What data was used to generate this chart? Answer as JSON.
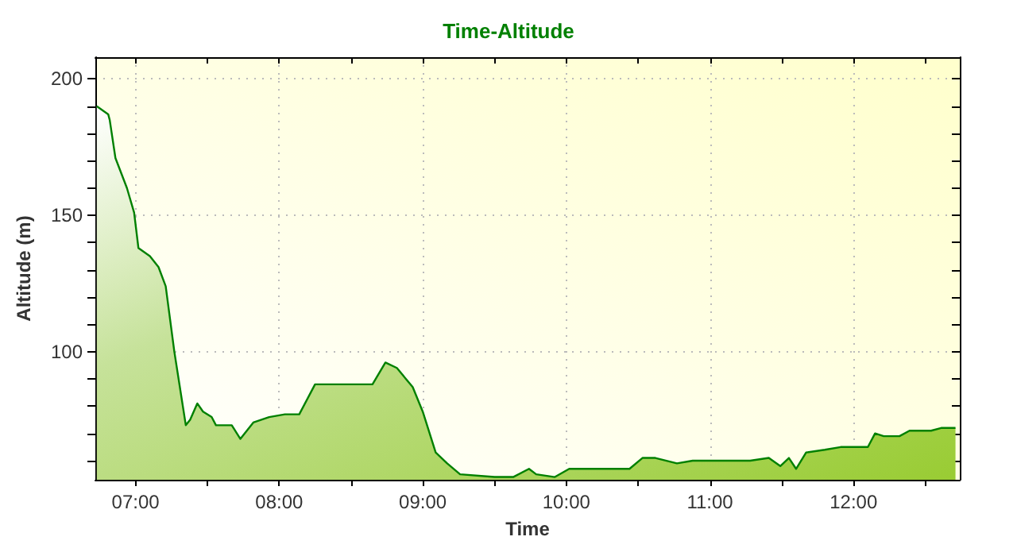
{
  "chart_data": {
    "type": "area",
    "title": "Time-Altitude",
    "xlabel": "Time",
    "ylabel": "Altitude (m)",
    "xlim": [
      6.72,
      12.74
    ],
    "xticks": [
      {
        "value": 7,
        "label": "07:00"
      },
      {
        "value": 7.5,
        "label": null
      },
      {
        "value": 8,
        "label": "08:00"
      },
      {
        "value": 8.5,
        "label": null
      },
      {
        "value": 9,
        "label": "09:00"
      },
      {
        "value": 9.5,
        "label": null
      },
      {
        "value": 10,
        "label": "10:00"
      },
      {
        "value": 10.5,
        "label": null
      },
      {
        "value": 11,
        "label": "11:00"
      },
      {
        "value": 11.5,
        "label": null
      },
      {
        "value": 12,
        "label": "12:00"
      },
      {
        "value": 12.5,
        "label": null
      }
    ],
    "ylim": [
      53,
      208
    ],
    "yticks": [
      {
        "value": 60,
        "label": null
      },
      {
        "value": 70,
        "label": null
      },
      {
        "value": 80,
        "label": null
      },
      {
        "value": 90,
        "label": null
      },
      100,
      {
        "value": 110,
        "label": null
      },
      {
        "value": 120,
        "label": null
      },
      {
        "value": 130,
        "label": null
      },
      {
        "value": 140,
        "label": null
      },
      150,
      {
        "value": 160,
        "label": null
      },
      {
        "value": 170,
        "label": null
      },
      {
        "value": 180,
        "label": null
      },
      {
        "value": 190,
        "label": null
      },
      200
    ],
    "grid": true,
    "line_style": "solid",
    "marker": "none",
    "series": [
      {
        "color": "#008000",
        "x": [
          6.73,
          6.81,
          6.82,
          6.86,
          6.94,
          6.99,
          7.02,
          7.1,
          7.16,
          7.21,
          7.27,
          7.35,
          7.38,
          7.43,
          7.47,
          7.53,
          7.56,
          7.67,
          7.73,
          7.82,
          7.93,
          8.04,
          8.14,
          8.25,
          8.49,
          8.65,
          8.74,
          8.82,
          8.93,
          9.0,
          9.09,
          9.17,
          9.26,
          9.5,
          9.63,
          9.74,
          9.79,
          9.92,
          10.02,
          10.44,
          10.53,
          10.62,
          10.77,
          10.88,
          11.28,
          11.41,
          11.49,
          11.55,
          11.6,
          11.67,
          11.8,
          11.91,
          12.1,
          12.15,
          12.21,
          12.32,
          12.39,
          12.54,
          12.61,
          12.71
        ],
        "values": [
          190,
          187,
          185,
          171,
          160,
          151,
          138,
          135,
          131,
          124,
          100,
          73,
          75,
          81,
          78,
          76,
          73,
          73,
          68,
          74,
          76,
          77,
          77,
          88,
          88,
          88,
          96,
          94,
          87,
          78,
          63,
          59,
          55,
          54,
          54,
          57,
          55,
          54,
          57,
          57,
          61,
          61,
          59,
          60,
          60,
          61,
          58,
          61,
          57,
          63,
          64,
          65,
          65,
          70,
          69,
          69,
          71,
          71,
          72,
          72
        ]
      }
    ]
  }
}
